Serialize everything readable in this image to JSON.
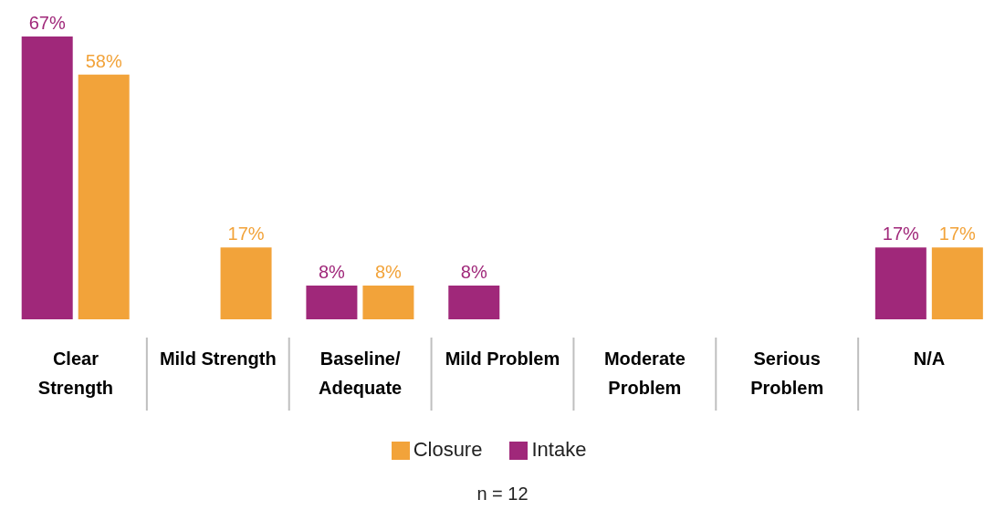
{
  "chart_data": {
    "type": "bar",
    "categories": [
      "Clear Strength",
      "Mild Strength",
      "Baseline/ Adequate",
      "Mild Problem",
      "Moderate Problem",
      "Serious Problem",
      "N/A"
    ],
    "series": [
      {
        "name": "Intake",
        "color": "#a0287a",
        "values": [
          67,
          null,
          8,
          8,
          null,
          null,
          17
        ],
        "value_labels": [
          "67%",
          null,
          "8%",
          "8%",
          null,
          null,
          "17%"
        ]
      },
      {
        "name": "Closure",
        "color": "#f2a33a",
        "values": [
          58,
          17,
          8,
          null,
          null,
          null,
          17
        ],
        "value_labels": [
          "58%",
          "17%",
          "8%",
          null,
          null,
          null,
          "17%"
        ]
      }
    ],
    "legend": "bottom",
    "grid": false,
    "annotations": [
      "n = 12"
    ]
  }
}
